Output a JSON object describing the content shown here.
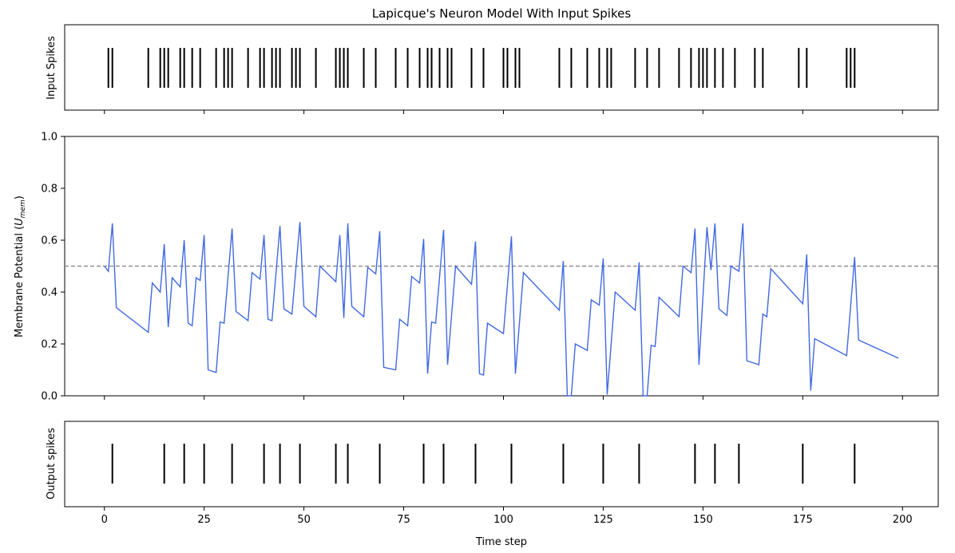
{
  "chart_data": {
    "title": "Lapicque's Neuron Model With Input Spikes",
    "xlabel": "Time step",
    "xlim": [
      -9.95,
      208.95
    ],
    "xticks": [
      0,
      25,
      50,
      75,
      100,
      125,
      150,
      175,
      200
    ],
    "panels": [
      {
        "type": "raster",
        "ylabel": "Input Spikes",
        "spike_times": [
          1,
          2,
          11,
          14,
          15,
          16,
          19,
          20,
          22,
          24,
          28,
          30,
          31,
          32,
          36,
          39,
          40,
          42,
          43,
          44,
          47,
          48,
          49,
          53,
          58,
          59,
          60,
          61,
          65,
          68,
          73,
          76,
          79,
          81,
          82,
          84,
          86,
          87,
          92,
          95,
          100,
          101,
          103,
          104,
          114,
          117,
          121,
          124,
          126,
          127,
          133,
          136,
          139,
          144,
          147,
          149,
          150,
          151,
          153,
          155,
          158,
          163,
          165,
          174,
          176,
          186,
          187,
          188
        ]
      },
      {
        "type": "line",
        "ylabel": "Membrane Potential (U_mem)",
        "ylim": [
          0,
          1
        ],
        "yticks": [
          0.0,
          0.2,
          0.4,
          0.6,
          0.8,
          1.0
        ],
        "threshold": 0.5,
        "series": [
          {
            "color": "#4169e1",
            "points": [
              [
                0,
                0.5
              ],
              [
                1,
                0.48
              ],
              [
                2,
                0.665
              ],
              [
                3,
                0.34
              ],
              [
                11,
                0.245
              ],
              [
                12,
                0.435
              ],
              [
                14,
                0.4
              ],
              [
                15,
                0.585
              ],
              [
                16,
                0.265
              ],
              [
                17,
                0.455
              ],
              [
                19,
                0.42
              ],
              [
                20,
                0.6
              ],
              [
                21,
                0.28
              ],
              [
                22,
                0.27
              ],
              [
                23,
                0.455
              ],
              [
                24,
                0.445
              ],
              [
                25,
                0.62
              ],
              [
                26,
                0.1
              ],
              [
                28,
                0.09
              ],
              [
                29,
                0.285
              ],
              [
                30,
                0.28
              ],
              [
                32,
                0.645
              ],
              [
                33,
                0.325
              ],
              [
                36,
                0.29
              ],
              [
                37,
                0.475
              ],
              [
                39,
                0.45
              ],
              [
                40,
                0.62
              ],
              [
                41,
                0.295
              ],
              [
                42,
                0.29
              ],
              [
                44,
                0.655
              ],
              [
                45,
                0.335
              ],
              [
                47,
                0.315
              ],
              [
                49,
                0.67
              ],
              [
                50,
                0.345
              ],
              [
                53,
                0.305
              ],
              [
                54,
                0.5
              ],
              [
                58,
                0.44
              ],
              [
                59,
                0.62
              ],
              [
                60,
                0.3
              ],
              [
                61,
                0.665
              ],
              [
                62,
                0.345
              ],
              [
                65,
                0.305
              ],
              [
                66,
                0.495
              ],
              [
                68,
                0.47
              ],
              [
                69,
                0.635
              ],
              [
                70,
                0.11
              ],
              [
                73,
                0.1
              ],
              [
                74,
                0.295
              ],
              [
                76,
                0.27
              ],
              [
                77,
                0.46
              ],
              [
                79,
                0.435
              ],
              [
                80,
                0.605
              ],
              [
                81,
                0.085
              ],
              [
                82,
                0.285
              ],
              [
                83,
                0.28
              ],
              [
                85,
                0.64
              ],
              [
                86,
                0.12
              ],
              [
                87,
                0.31
              ],
              [
                88,
                0.5
              ],
              [
                92,
                0.43
              ],
              [
                93,
                0.595
              ],
              [
                94,
                0.085
              ],
              [
                95,
                0.08
              ],
              [
                96,
                0.28
              ],
              [
                100,
                0.24
              ],
              [
                102,
                0.615
              ],
              [
                103,
                0.085
              ],
              [
                105,
                0.475
              ],
              [
                114,
                0.33
              ],
              [
                115,
                0.52
              ],
              [
                116,
                0.0
              ],
              [
                117,
                0.0
              ],
              [
                118,
                0.2
              ],
              [
                121,
                0.175
              ],
              [
                122,
                0.37
              ],
              [
                124,
                0.35
              ],
              [
                125,
                0.53
              ],
              [
                126,
                0.005
              ],
              [
                128,
                0.4
              ],
              [
                133,
                0.33
              ],
              [
                134,
                0.515
              ],
              [
                135,
                0.0
              ],
              [
                136,
                0.0
              ],
              [
                137,
                0.195
              ],
              [
                138,
                0.19
              ],
              [
                139,
                0.38
              ],
              [
                144,
                0.305
              ],
              [
                145,
                0.5
              ],
              [
                147,
                0.475
              ],
              [
                148,
                0.645
              ],
              [
                149,
                0.12
              ],
              [
                151,
                0.65
              ],
              [
                152,
                0.485
              ],
              [
                153,
                0.665
              ],
              [
                154,
                0.335
              ],
              [
                156,
                0.31
              ],
              [
                157,
                0.5
              ],
              [
                159,
                0.48
              ],
              [
                160,
                0.665
              ],
              [
                161,
                0.135
              ],
              [
                164,
                0.12
              ],
              [
                165,
                0.315
              ],
              [
                166,
                0.305
              ],
              [
                167,
                0.49
              ],
              [
                175,
                0.355
              ],
              [
                176,
                0.545
              ],
              [
                177,
                0.02
              ],
              [
                178,
                0.22
              ],
              [
                186,
                0.155
              ],
              [
                188,
                0.535
              ],
              [
                189,
                0.215
              ],
              [
                199,
                0.145
              ]
            ]
          }
        ]
      },
      {
        "type": "raster",
        "ylabel": "Output spikes",
        "spike_times": [
          2,
          15,
          20,
          25,
          32,
          40,
          44,
          49,
          58,
          61,
          69,
          80,
          85,
          93,
          102,
          115,
          125,
          134,
          148,
          153,
          159,
          175,
          188
        ]
      }
    ]
  }
}
